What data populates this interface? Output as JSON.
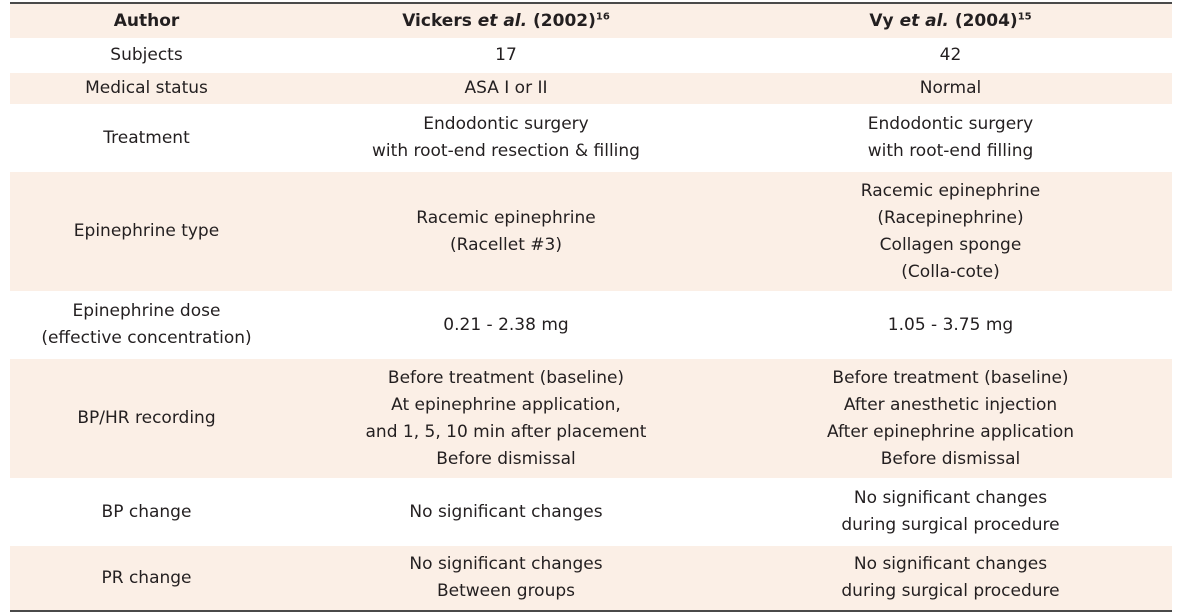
{
  "header": {
    "col1": "Author",
    "col2": {
      "name": "Vickers",
      "etal": "et al.",
      "year": "(2002)",
      "ref": "16"
    },
    "col3": {
      "name": "Vy",
      "etal": "et al.",
      "year": "(2004)",
      "ref": "15"
    }
  },
  "rows": [
    {
      "label": [
        "Subjects"
      ],
      "c2": [
        "17"
      ],
      "c3": [
        "42"
      ]
    },
    {
      "label": [
        "Medical status"
      ],
      "c2": [
        "ASA I or II"
      ],
      "c3": [
        "Normal"
      ]
    },
    {
      "label": [
        "Treatment"
      ],
      "c2": [
        "Endodontic surgery",
        "with root-end resection & filling"
      ],
      "c3": [
        "Endodontic surgery",
        "with root-end filling"
      ]
    },
    {
      "label": [
        "Epinephrine type"
      ],
      "c2": [
        "Racemic epinephrine",
        "(Racellet #3)"
      ],
      "c3": [
        "Racemic epinephrine",
        "(Racepinephrine)",
        "Collagen sponge",
        "(Colla-cote)"
      ]
    },
    {
      "label": [
        "Epinephrine dose",
        "(effective concentration)"
      ],
      "c2": [
        "0.21 - 2.38 mg"
      ],
      "c3": [
        "1.05 - 3.75 mg"
      ]
    },
    {
      "label": [
        "BP/HR recording"
      ],
      "c2": [
        "Before treatment (baseline)",
        "At epinephrine application,",
        "and 1, 5, 10 min after placement",
        "Before dismissal"
      ],
      "c3": [
        "Before treatment (baseline)",
        "After anesthetic injection",
        "After epinephrine application",
        "Before dismissal"
      ]
    },
    {
      "label": [
        "BP change"
      ],
      "c2": [
        "No significant changes"
      ],
      "c3": [
        "No significant changes",
        "during surgical procedure"
      ]
    },
    {
      "label": [
        "PR change"
      ],
      "c2": [
        "No significant changes",
        "Between groups"
      ],
      "c3": [
        "No significant changes",
        "during surgical procedure"
      ]
    }
  ]
}
